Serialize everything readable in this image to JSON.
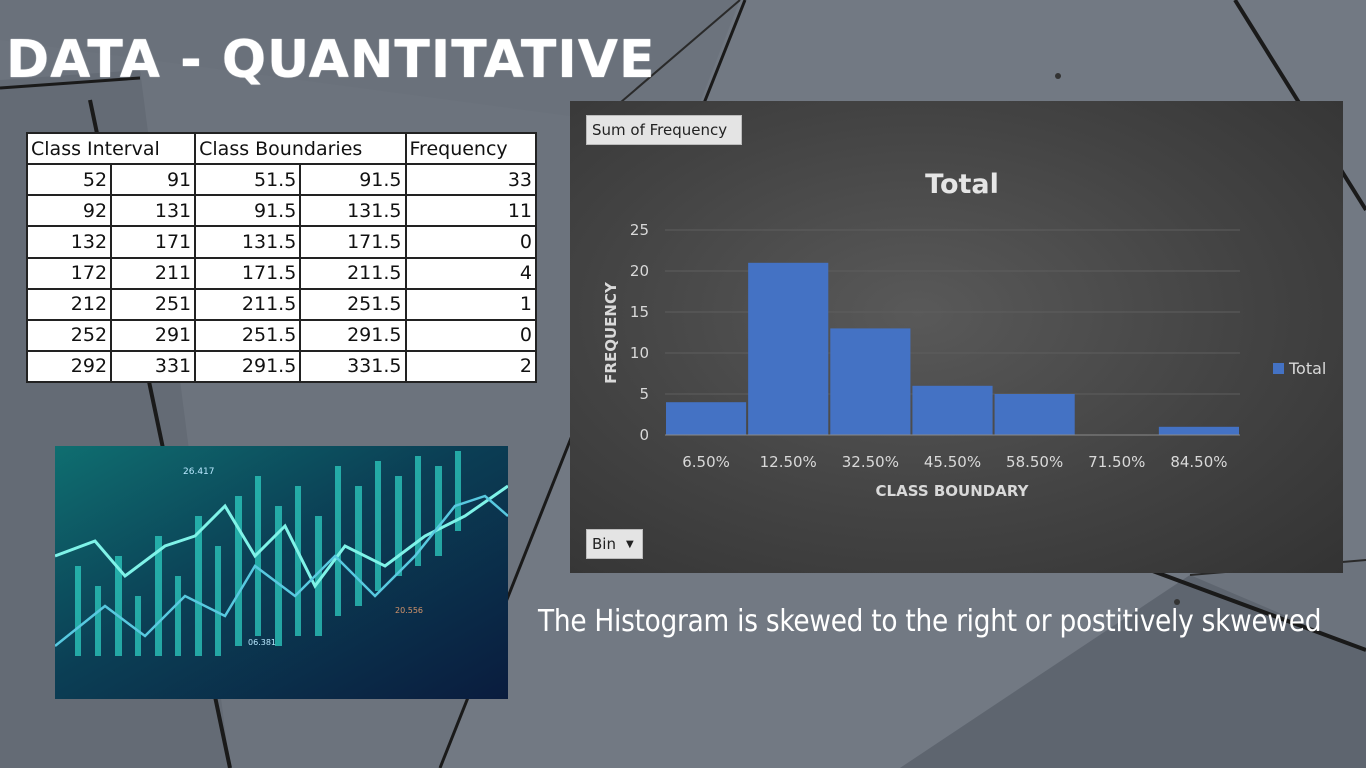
{
  "slide": {
    "title": "DATA - QUANTITATIVE",
    "caption": "The Histogram is skewed to the right or postitively skwewed"
  },
  "table": {
    "headers": [
      "Class Interval",
      "Class Boundaries",
      "Frequency"
    ],
    "rows": [
      [
        "52",
        "91",
        "51.5",
        "91.5",
        "33"
      ],
      [
        "92",
        "131",
        "91.5",
        "131.5",
        "11"
      ],
      [
        "132",
        "171",
        "131.5",
        "171.5",
        "0"
      ],
      [
        "172",
        "211",
        "171.5",
        "211.5",
        "4"
      ],
      [
        "212",
        "251",
        "211.5",
        "251.5",
        "1"
      ],
      [
        "252",
        "291",
        "251.5",
        "291.5",
        "0"
      ],
      [
        "292",
        "331",
        "291.5",
        "331.5",
        "2"
      ]
    ]
  },
  "stock_image": {
    "labels": [
      "26.417",
      "06.381",
      "20.556"
    ]
  },
  "pivot": {
    "field_button": "Sum of Frequency",
    "bin_button": "Bin"
  },
  "chart_data": {
    "type": "bar",
    "title": "Total",
    "xlabel": "CLASS BOUNDARY",
    "ylabel": "FREQUENCY",
    "categories": [
      "6.50%",
      "12.50%",
      "32.50%",
      "45.50%",
      "58.50%",
      "71.50%",
      "84.50%"
    ],
    "series": [
      {
        "name": "Total",
        "values": [
          4,
          21,
          13,
          6,
          5,
          0,
          1
        ],
        "color": "#4472c4"
      }
    ],
    "ylim": [
      0,
      25
    ],
    "yticks": [
      0,
      5,
      10,
      15,
      20,
      25
    ],
    "grid": true,
    "legend": "right"
  },
  "colors": {
    "bar": "#4472c4",
    "chart_background": "#404040",
    "slide_background": "#6d747e"
  }
}
